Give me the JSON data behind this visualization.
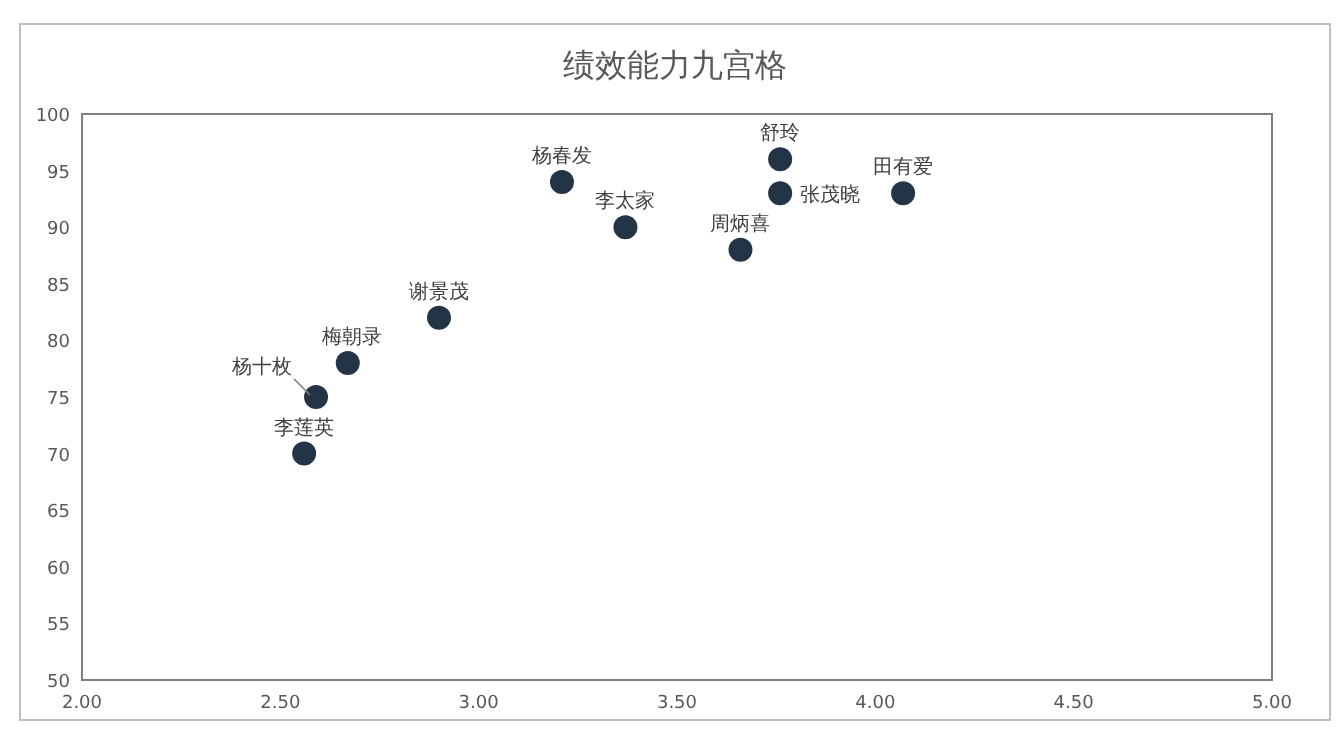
{
  "chart_data": {
    "type": "scatter",
    "title": "绩效能力九宫格",
    "x": [
      2.56,
      2.59,
      2.67,
      2.9,
      3.21,
      3.37,
      3.66,
      3.76,
      3.76,
      4.07
    ],
    "values": [
      70,
      75,
      78,
      82,
      94,
      90,
      88,
      96,
      93,
      93
    ],
    "color": "#243447",
    "marker": "circle",
    "grid": false,
    "xlim": [
      2,
      5
    ],
    "xticks": [
      {
        "value": 2,
        "label": "2.00"
      },
      {
        "value": 2.5,
        "label": "2.50"
      },
      {
        "value": 3,
        "label": "3.00"
      },
      {
        "value": 3.5,
        "label": "3.50"
      },
      {
        "value": 4,
        "label": "4.00"
      },
      {
        "value": 4.5,
        "label": "4.50"
      },
      {
        "value": 5,
        "label": "5.00"
      }
    ],
    "ylim": [
      50,
      100
    ],
    "yticks": [
      50,
      55,
      60,
      65,
      70,
      75,
      80,
      85,
      90,
      95,
      100
    ],
    "annotations": [
      {
        "text": "李莲英",
        "x": 2.56,
        "y": 70
      },
      {
        "text": "杨十枚",
        "x": 2.59,
        "y": 75
      },
      {
        "text": "梅朝录",
        "x": 2.67,
        "y": 78
      },
      {
        "text": "谢景茂",
        "x": 2.9,
        "y": 82
      },
      {
        "text": "杨春发",
        "x": 3.21,
        "y": 94
      },
      {
        "text": "李太家",
        "x": 3.37,
        "y": 90
      },
      {
        "text": "周炳喜",
        "x": 3.66,
        "y": 88
      },
      {
        "text": "舒玲",
        "x": 3.76,
        "y": 96
      },
      {
        "text": "张茂晓",
        "x": 3.76,
        "y": 93
      },
      {
        "text": "田有爱",
        "x": 4.07,
        "y": 93
      }
    ]
  }
}
